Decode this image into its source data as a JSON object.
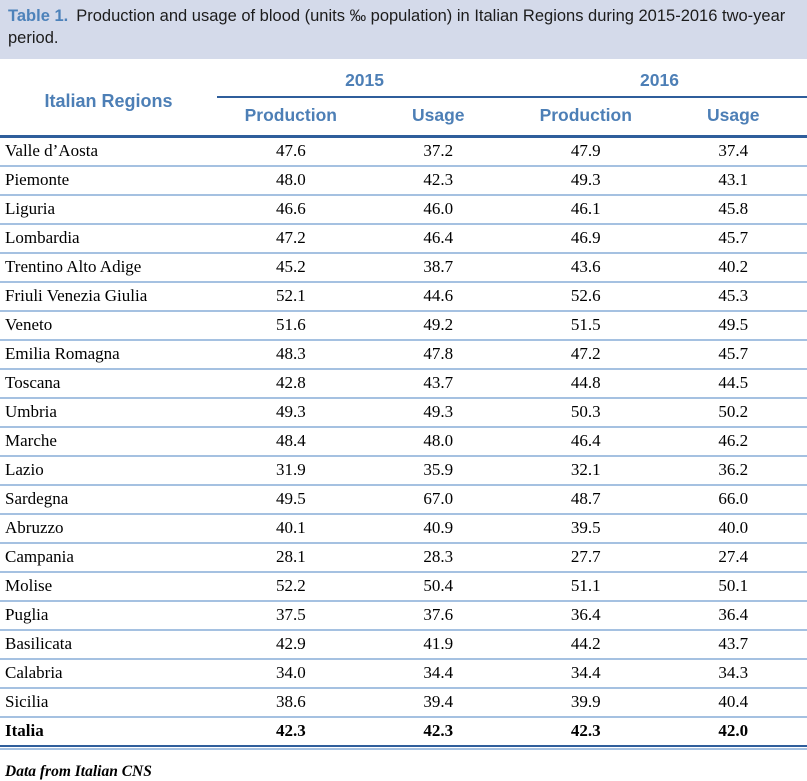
{
  "caption": {
    "label": "Table 1.",
    "text": "Production and usage of blood (units ‰ population) in Italian Regions during 2015-2016 two-year period."
  },
  "table": {
    "region_header": "Italian Regions",
    "year_groups": [
      {
        "year": "2015",
        "columns": [
          "Production",
          "Usage"
        ]
      },
      {
        "year": "2016",
        "columns": [
          "Production",
          "Usage"
        ]
      }
    ],
    "rows": [
      {
        "region": "Valle d’Aosta",
        "values": [
          "47.6",
          "37.2",
          "47.9",
          "37.4"
        ],
        "bold": false
      },
      {
        "region": "Piemonte",
        "values": [
          "48.0",
          "42.3",
          "49.3",
          "43.1"
        ],
        "bold": false
      },
      {
        "region": "Liguria",
        "values": [
          "46.6",
          "46.0",
          "46.1",
          "45.8"
        ],
        "bold": false
      },
      {
        "region": "Lombardia",
        "values": [
          "47.2",
          "46.4",
          "46.9",
          "45.7"
        ],
        "bold": false
      },
      {
        "region": "Trentino Alto Adige",
        "values": [
          "45.2",
          "38.7",
          "43.6",
          "40.2"
        ],
        "bold": false
      },
      {
        "region": "Friuli Venezia Giulia",
        "values": [
          "52.1",
          "44.6",
          "52.6",
          "45.3"
        ],
        "bold": false
      },
      {
        "region": "Veneto",
        "values": [
          "51.6",
          "49.2",
          "51.5",
          "49.5"
        ],
        "bold": false
      },
      {
        "region": "Emilia Romagna",
        "values": [
          "48.3",
          "47.8",
          "47.2",
          "45.7"
        ],
        "bold": false
      },
      {
        "region": "Toscana",
        "values": [
          "42.8",
          "43.7",
          "44.8",
          "44.5"
        ],
        "bold": false
      },
      {
        "region": "Umbria",
        "values": [
          "49.3",
          "49.3",
          "50.3",
          "50.2"
        ],
        "bold": false
      },
      {
        "region": "Marche",
        "values": [
          "48.4",
          "48.0",
          "46.4",
          "46.2"
        ],
        "bold": false
      },
      {
        "region": "Lazio",
        "values": [
          "31.9",
          "35.9",
          "32.1",
          "36.2"
        ],
        "bold": false
      },
      {
        "region": "Sardegna",
        "values": [
          "49.5",
          "67.0",
          "48.7",
          "66.0"
        ],
        "bold": false
      },
      {
        "region": "Abruzzo",
        "values": [
          "40.1",
          "40.9",
          "39.5",
          "40.0"
        ],
        "bold": false
      },
      {
        "region": "Campania",
        "values": [
          "28.1",
          "28.3",
          "27.7",
          "27.4"
        ],
        "bold": false
      },
      {
        "region": "Molise",
        "values": [
          "52.2",
          "50.4",
          "51.1",
          "50.1"
        ],
        "bold": false
      },
      {
        "region": "Puglia",
        "values": [
          "37.5",
          "37.6",
          "36.4",
          "36.4"
        ],
        "bold": false
      },
      {
        "region": "Basilicata",
        "values": [
          "42.9",
          "41.9",
          "44.2",
          "43.7"
        ],
        "bold": false
      },
      {
        "region": "Calabria",
        "values": [
          "34.0",
          "34.4",
          "34.4",
          "34.3"
        ],
        "bold": false
      },
      {
        "region": "Sicilia",
        "values": [
          "38.6",
          "39.4",
          "39.9",
          "40.4"
        ],
        "bold": false
      },
      {
        "region": "Italia",
        "values": [
          "42.3",
          "42.3",
          "42.3",
          "42.0"
        ],
        "bold": true
      }
    ]
  },
  "footer_note": "Data from Italian CNS",
  "colors": {
    "caption_band_bg": "#d4daea",
    "header_text": "#4d7fb6",
    "caption_label": "#4d82ba",
    "dark_rule": "#2f5e9b",
    "light_rule": "#a5c1e1"
  }
}
